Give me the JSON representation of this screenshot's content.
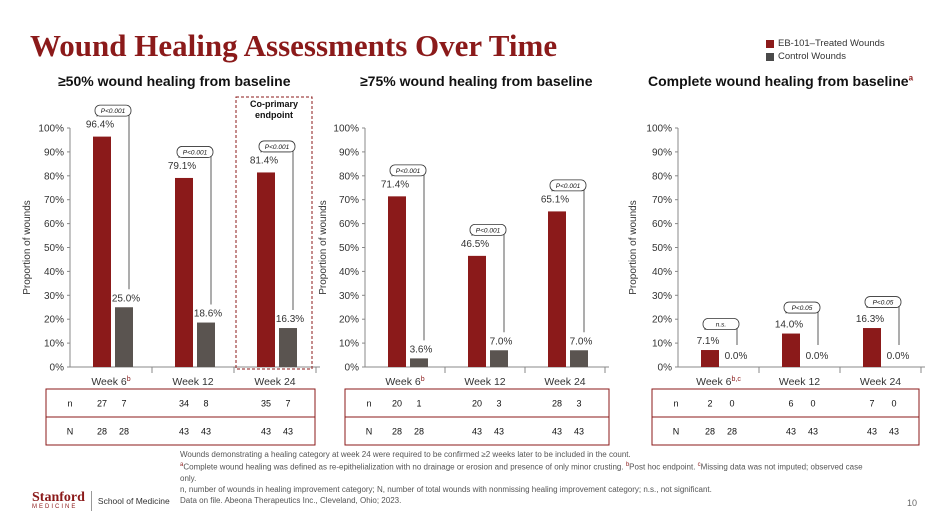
{
  "slide": {
    "title": "Wound Healing Assessments Over Time",
    "page_number": "10",
    "legend": [
      {
        "label": "EB-101–Treated Wounds",
        "color": "#8b1a1a"
      },
      {
        "label": "Control Wounds",
        "color": "#4a4a4a"
      }
    ],
    "footnotes": {
      "line1": "Wounds demonstrating a healing category at week 24 were required to be confirmed ≥2 weeks later to be included in the count.",
      "line2_marker": "a",
      "line2": "Complete wound healing was defined as re-epithelialization with no drainage or erosion and presence of only minor crusting. ",
      "line2b_marker": "b",
      "line2b": "Post hoc endpoint. ",
      "line2c_marker": "c",
      "line2c": "Missing data was not imputed; observed case only.",
      "line3": "n, number of wounds in healing improvement category; N, number of total wounds with nonmissing healing improvement category; n.s., not significant.",
      "line4": "Data on file. Abeona Therapeutics Inc., Cleveland, Ohio; 2023."
    },
    "logo": {
      "name": "Stanford",
      "sub": "MEDICINE",
      "school": "School of Medicine"
    },
    "colors": {
      "treated": "#8b1a1a",
      "control": "#5a5450",
      "accent": "#8b1a1a"
    }
  },
  "chart_data": [
    {
      "type": "bar",
      "title": "≥50% wound healing from baseline",
      "title_marker": "",
      "ylabel": "Proportion of wounds",
      "ylim": [
        0,
        100
      ],
      "yticks": [
        "0%",
        "10%",
        "20%",
        "30%",
        "40%",
        "50%",
        "60%",
        "70%",
        "80%",
        "90%",
        "100%"
      ],
      "categories": [
        "Week 6",
        "Week 12",
        "Week 24"
      ],
      "category_markers": [
        "b",
        "",
        ""
      ],
      "series": [
        {
          "name": "EB-101–Treated Wounds",
          "values": [
            96.4,
            79.1,
            81.4
          ],
          "labels": [
            "96.4%",
            "79.1%",
            "81.4%"
          ]
        },
        {
          "name": "Control Wounds",
          "values": [
            25.0,
            18.6,
            16.3
          ],
          "labels": [
            "25.0%",
            "18.6%",
            "16.3%"
          ]
        }
      ],
      "pvalues": [
        "P<0.001",
        "P<0.001",
        "P<0.001"
      ],
      "annotation": "Co-primary endpoint",
      "n": [
        [
          "27",
          "7"
        ],
        [
          "34",
          "8"
        ],
        [
          "35",
          "7"
        ]
      ],
      "N": [
        [
          "28",
          "28"
        ],
        [
          "43",
          "43"
        ],
        [
          "43",
          "43"
        ]
      ]
    },
    {
      "type": "bar",
      "title": "≥75% wound healing from baseline",
      "title_marker": "",
      "ylabel": "Proportion of wounds",
      "ylim": [
        0,
        100
      ],
      "yticks": [
        "0%",
        "10%",
        "20%",
        "30%",
        "40%",
        "50%",
        "60%",
        "70%",
        "80%",
        "90%",
        "100%"
      ],
      "categories": [
        "Week 6",
        "Week 12",
        "Week 24"
      ],
      "category_markers": [
        "b",
        "",
        ""
      ],
      "series": [
        {
          "name": "EB-101–Treated Wounds",
          "values": [
            71.4,
            46.5,
            65.1
          ],
          "labels": [
            "71.4%",
            "46.5%",
            "65.1%"
          ]
        },
        {
          "name": "Control Wounds",
          "values": [
            3.6,
            7.0,
            7.0
          ],
          "labels": [
            "3.6%",
            "7.0%",
            "7.0%"
          ]
        }
      ],
      "pvalues": [
        "P<0.001",
        "P<0.001",
        "P<0.001"
      ],
      "annotation": "",
      "n": [
        [
          "20",
          "1"
        ],
        [
          "20",
          "3"
        ],
        [
          "28",
          "3"
        ]
      ],
      "N": [
        [
          "28",
          "28"
        ],
        [
          "43",
          "43"
        ],
        [
          "43",
          "43"
        ]
      ]
    },
    {
      "type": "bar",
      "title": "Complete wound healing from baseline",
      "title_marker": "a",
      "ylabel": "Proportion of wounds",
      "ylim": [
        0,
        100
      ],
      "yticks": [
        "0%",
        "10%",
        "20%",
        "30%",
        "40%",
        "50%",
        "60%",
        "70%",
        "80%",
        "90%",
        "100%"
      ],
      "categories": [
        "Week 6",
        "Week 12",
        "Week 24"
      ],
      "category_markers": [
        "b,c",
        "",
        ""
      ],
      "series": [
        {
          "name": "EB-101–Treated Wounds",
          "values": [
            7.1,
            14.0,
            16.3
          ],
          "labels": [
            "7.1%",
            "14.0%",
            "16.3%"
          ]
        },
        {
          "name": "Control Wounds",
          "values": [
            0.0,
            0.0,
            0.0
          ],
          "labels": [
            "0.0%",
            "0.0%",
            "0.0%"
          ]
        }
      ],
      "pvalues": [
        "n.s.",
        "P<0.05",
        "P<0.05"
      ],
      "annotation": "",
      "n": [
        [
          "2",
          "0"
        ],
        [
          "6",
          "0"
        ],
        [
          "7",
          "0"
        ]
      ],
      "N": [
        [
          "28",
          "28"
        ],
        [
          "43",
          "43"
        ],
        [
          "43",
          "43"
        ]
      ]
    }
  ]
}
